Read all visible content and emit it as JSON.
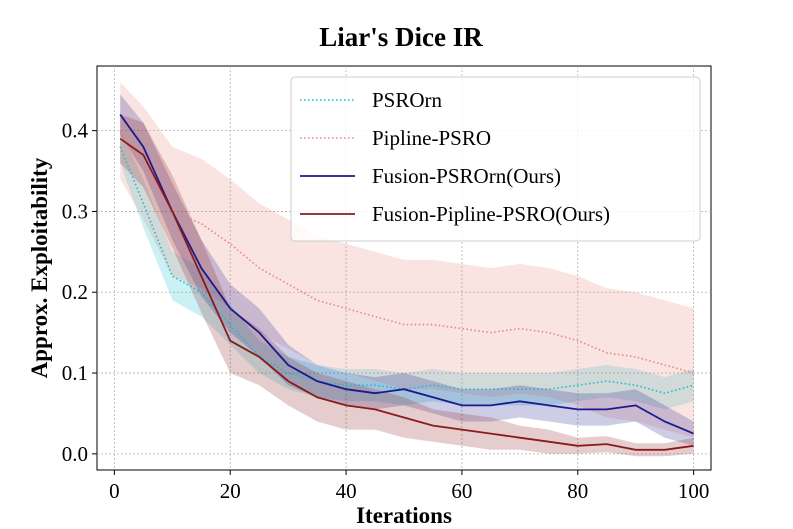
{
  "chart_data": {
    "type": "line",
    "title": "Liar's Dice IR",
    "xlabel": "Iterations",
    "ylabel": "Approx. Exploitability",
    "xlim": [
      -3,
      103
    ],
    "ylim": [
      -0.02,
      0.48
    ],
    "xticks": [
      0,
      20,
      40,
      60,
      80,
      100
    ],
    "xtick_labels": [
      "0",
      "20",
      "40",
      "60",
      "80",
      "100"
    ],
    "yticks": [
      0.0,
      0.1,
      0.2,
      0.3,
      0.4
    ],
    "ytick_labels": [
      "0.0",
      "0.1",
      "0.2",
      "0.3",
      "0.4"
    ],
    "grid": true,
    "legend_position": "top-right",
    "x": [
      1,
      5,
      10,
      15,
      20,
      25,
      30,
      35,
      40,
      45,
      50,
      55,
      60,
      65,
      70,
      75,
      80,
      85,
      90,
      95,
      100
    ],
    "series": [
      {
        "name": "PSROrn",
        "label": "PSROrn",
        "color": "#17becf",
        "style": "dotted",
        "values": [
          0.38,
          0.31,
          0.22,
          0.2,
          0.16,
          0.12,
          0.1,
          0.09,
          0.085,
          0.085,
          0.08,
          0.085,
          0.08,
          0.08,
          0.08,
          0.08,
          0.085,
          0.09,
          0.085,
          0.075,
          0.085
        ],
        "band": [
          0.02,
          0.03,
          0.03,
          0.03,
          0.025,
          0.02,
          0.02,
          0.02,
          0.02,
          0.02,
          0.02,
          0.02,
          0.02,
          0.02,
          0.02,
          0.02,
          0.02,
          0.02,
          0.02,
          0.02,
          0.02
        ]
      },
      {
        "name": "Pipline-PSRO",
        "label": "Pipline-PSRO",
        "color": "#e8847c",
        "style": "dotted",
        "values": [
          0.4,
          0.36,
          0.3,
          0.285,
          0.26,
          0.23,
          0.21,
          0.19,
          0.18,
          0.17,
          0.16,
          0.16,
          0.155,
          0.15,
          0.155,
          0.15,
          0.14,
          0.125,
          0.12,
          0.11,
          0.1
        ],
        "band": [
          0.06,
          0.07,
          0.08,
          0.08,
          0.08,
          0.08,
          0.08,
          0.08,
          0.08,
          0.08,
          0.08,
          0.08,
          0.08,
          0.08,
          0.08,
          0.08,
          0.08,
          0.08,
          0.08,
          0.08,
          0.08
        ]
      },
      {
        "name": "Fusion-PSROrn(Ours)",
        "label": "Fusion-PSROrn(Ours)",
        "color": "#1a1a8c",
        "style": "solid",
        "values": [
          0.42,
          0.38,
          0.3,
          0.23,
          0.18,
          0.15,
          0.11,
          0.09,
          0.08,
          0.075,
          0.08,
          0.07,
          0.06,
          0.06,
          0.065,
          0.06,
          0.055,
          0.055,
          0.06,
          0.04,
          0.025
        ],
        "band": [
          0.025,
          0.03,
          0.035,
          0.035,
          0.03,
          0.03,
          0.025,
          0.02,
          0.02,
          0.02,
          0.02,
          0.02,
          0.02,
          0.02,
          0.02,
          0.02,
          0.02,
          0.02,
          0.02,
          0.02,
          0.015
        ]
      },
      {
        "name": "Fusion-Pipline-PSRO(Ours)",
        "label": "Fusion-Pipline-PSRO(Ours)",
        "color": "#8b1a1a",
        "style": "solid",
        "values": [
          0.39,
          0.37,
          0.3,
          0.22,
          0.14,
          0.12,
          0.09,
          0.07,
          0.06,
          0.055,
          0.045,
          0.035,
          0.03,
          0.025,
          0.02,
          0.015,
          0.01,
          0.012,
          0.005,
          0.005,
          0.01
        ],
        "band": [
          0.03,
          0.04,
          0.045,
          0.045,
          0.04,
          0.035,
          0.03,
          0.03,
          0.03,
          0.025,
          0.025,
          0.02,
          0.02,
          0.02,
          0.015,
          0.015,
          0.01,
          0.01,
          0.008,
          0.008,
          0.01
        ]
      }
    ]
  }
}
